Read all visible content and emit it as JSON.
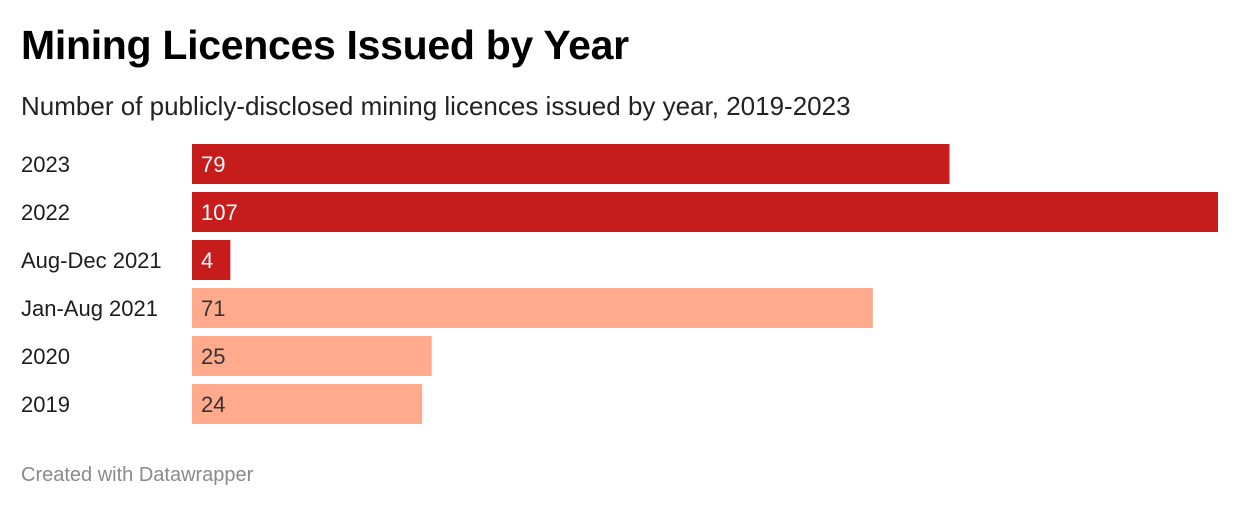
{
  "title": "Mining Licences Issued by Year",
  "subtitle": "Number of publicly-disclosed mining licences issued by year, 2019-2023",
  "footer": "Created with Datawrapper",
  "colors": {
    "highlight": "#c71c1c",
    "muted": "#ffaa8c",
    "label_on_dark": "#ffffff",
    "label_on_light": "#333333"
  },
  "chart_data": {
    "type": "bar",
    "orientation": "horizontal",
    "categories": [
      "2023",
      "2022",
      "Aug-Dec 2021",
      "Jan-Aug 2021",
      "2020",
      "2019"
    ],
    "values": [
      79,
      107,
      4,
      71,
      25,
      24
    ],
    "bar_colors": [
      "#c71c1c",
      "#c71c1c",
      "#c71c1c",
      "#ffaa8c",
      "#ffaa8c",
      "#ffaa8c"
    ],
    "xlim": [
      0,
      107
    ],
    "grid": false,
    "value_labels": "inside-left"
  }
}
